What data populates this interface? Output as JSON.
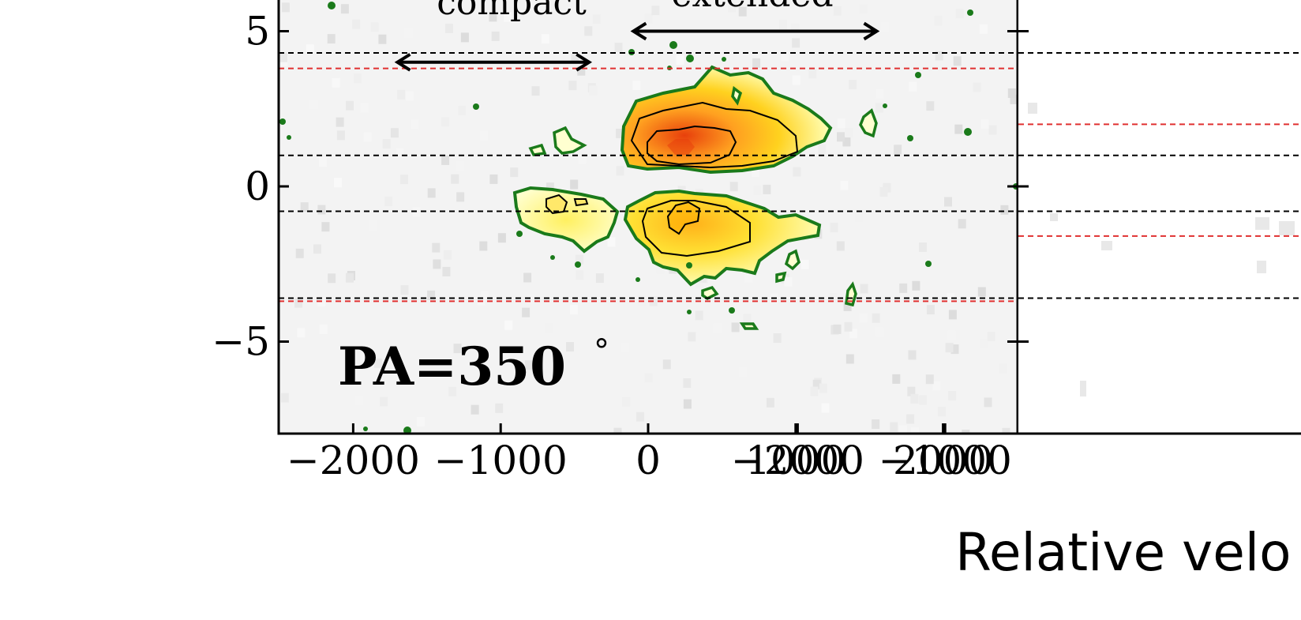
{
  "chart_data": [
    {
      "type": "heatmap",
      "panel": "left",
      "xlabel": "Relative velo",
      "x_range": [
        -2500,
        2500
      ],
      "y_range": [
        -8,
        6
      ],
      "x_ticks": [
        -2000,
        -1000,
        0,
        1000,
        2000
      ],
      "x_tick_labels": [
        "−2000",
        "−1000",
        "0",
        "1000",
        "2000"
      ],
      "y_ticks": [
        -5,
        0,
        5
      ],
      "y_tick_labels": [
        "−5",
        "0",
        "5"
      ],
      "annotation": {
        "text": "PA=350",
        "degree_symbol": "°"
      },
      "arrows": [
        {
          "label": "compact",
          "x_start": -1700,
          "x_end": -400,
          "y": 4.0
        },
        {
          "label": "extended",
          "x_start": -100,
          "x_end": 1550,
          "y": 5.0
        }
      ],
      "black_dashed_lines_y": [
        4.3,
        1.0,
        -0.8,
        -3.6
      ],
      "red_dashed_lines_y": [
        3.8,
        -3.7
      ],
      "colors": {
        "contour_outer": "#1a7a1a",
        "contour_inner": "#000000",
        "emission_peak": "#e8400c",
        "emission_mid": "#ffd21f",
        "emission_low": "#ffffb0",
        "black_dashed": "#000000",
        "red_dashed": "#e03030"
      }
    },
    {
      "type": "heatmap",
      "panel": "right",
      "x_ticks": [
        -2000,
        -1000
      ],
      "x_tick_labels": [
        "−2000",
        "−1000"
      ],
      "black_dashed_lines_y": [
        4.3,
        1.0,
        -0.8,
        -3.6
      ],
      "red_dashed_lines_y": [
        2.0,
        -1.6
      ]
    }
  ]
}
